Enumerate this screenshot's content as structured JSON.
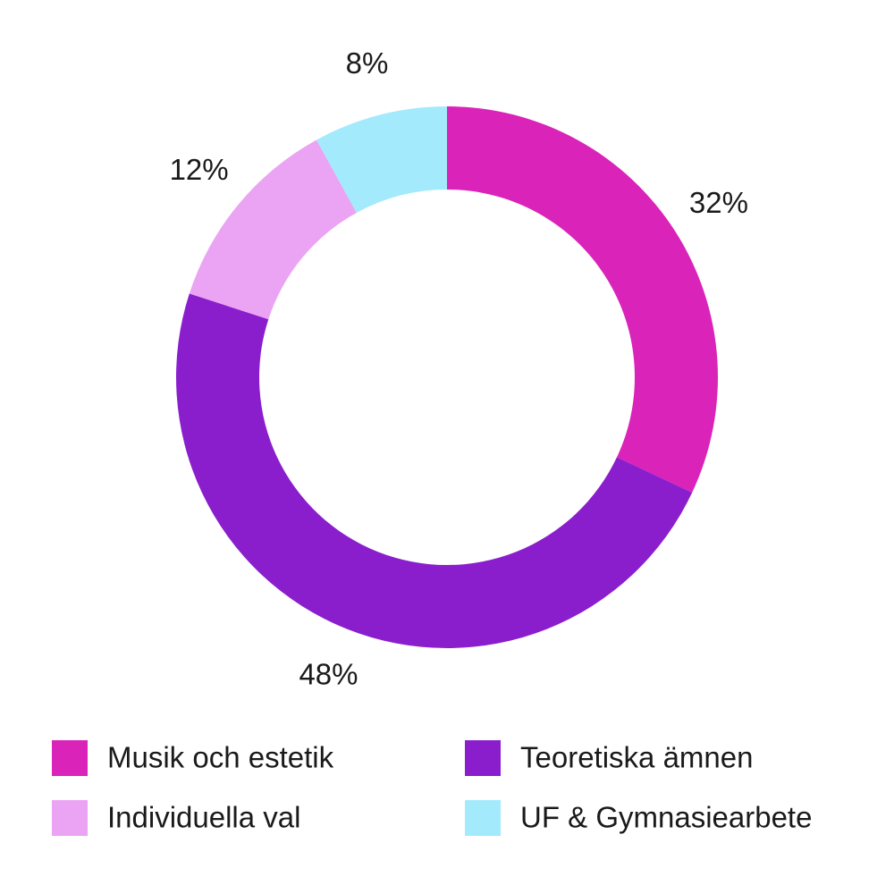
{
  "chart_data": {
    "type": "pie",
    "categories": [
      "Musik och estetik",
      "Teoretiska ämnen",
      "Individuella val",
      "UF & Gymnasiearbete"
    ],
    "values": [
      32,
      48,
      12,
      8
    ],
    "value_labels": [
      "32%",
      "48%",
      "12%",
      "8%"
    ],
    "colors": [
      "#d923b9",
      "#8a1ecd",
      "#eba3f3",
      "#a3eafd"
    ]
  }
}
